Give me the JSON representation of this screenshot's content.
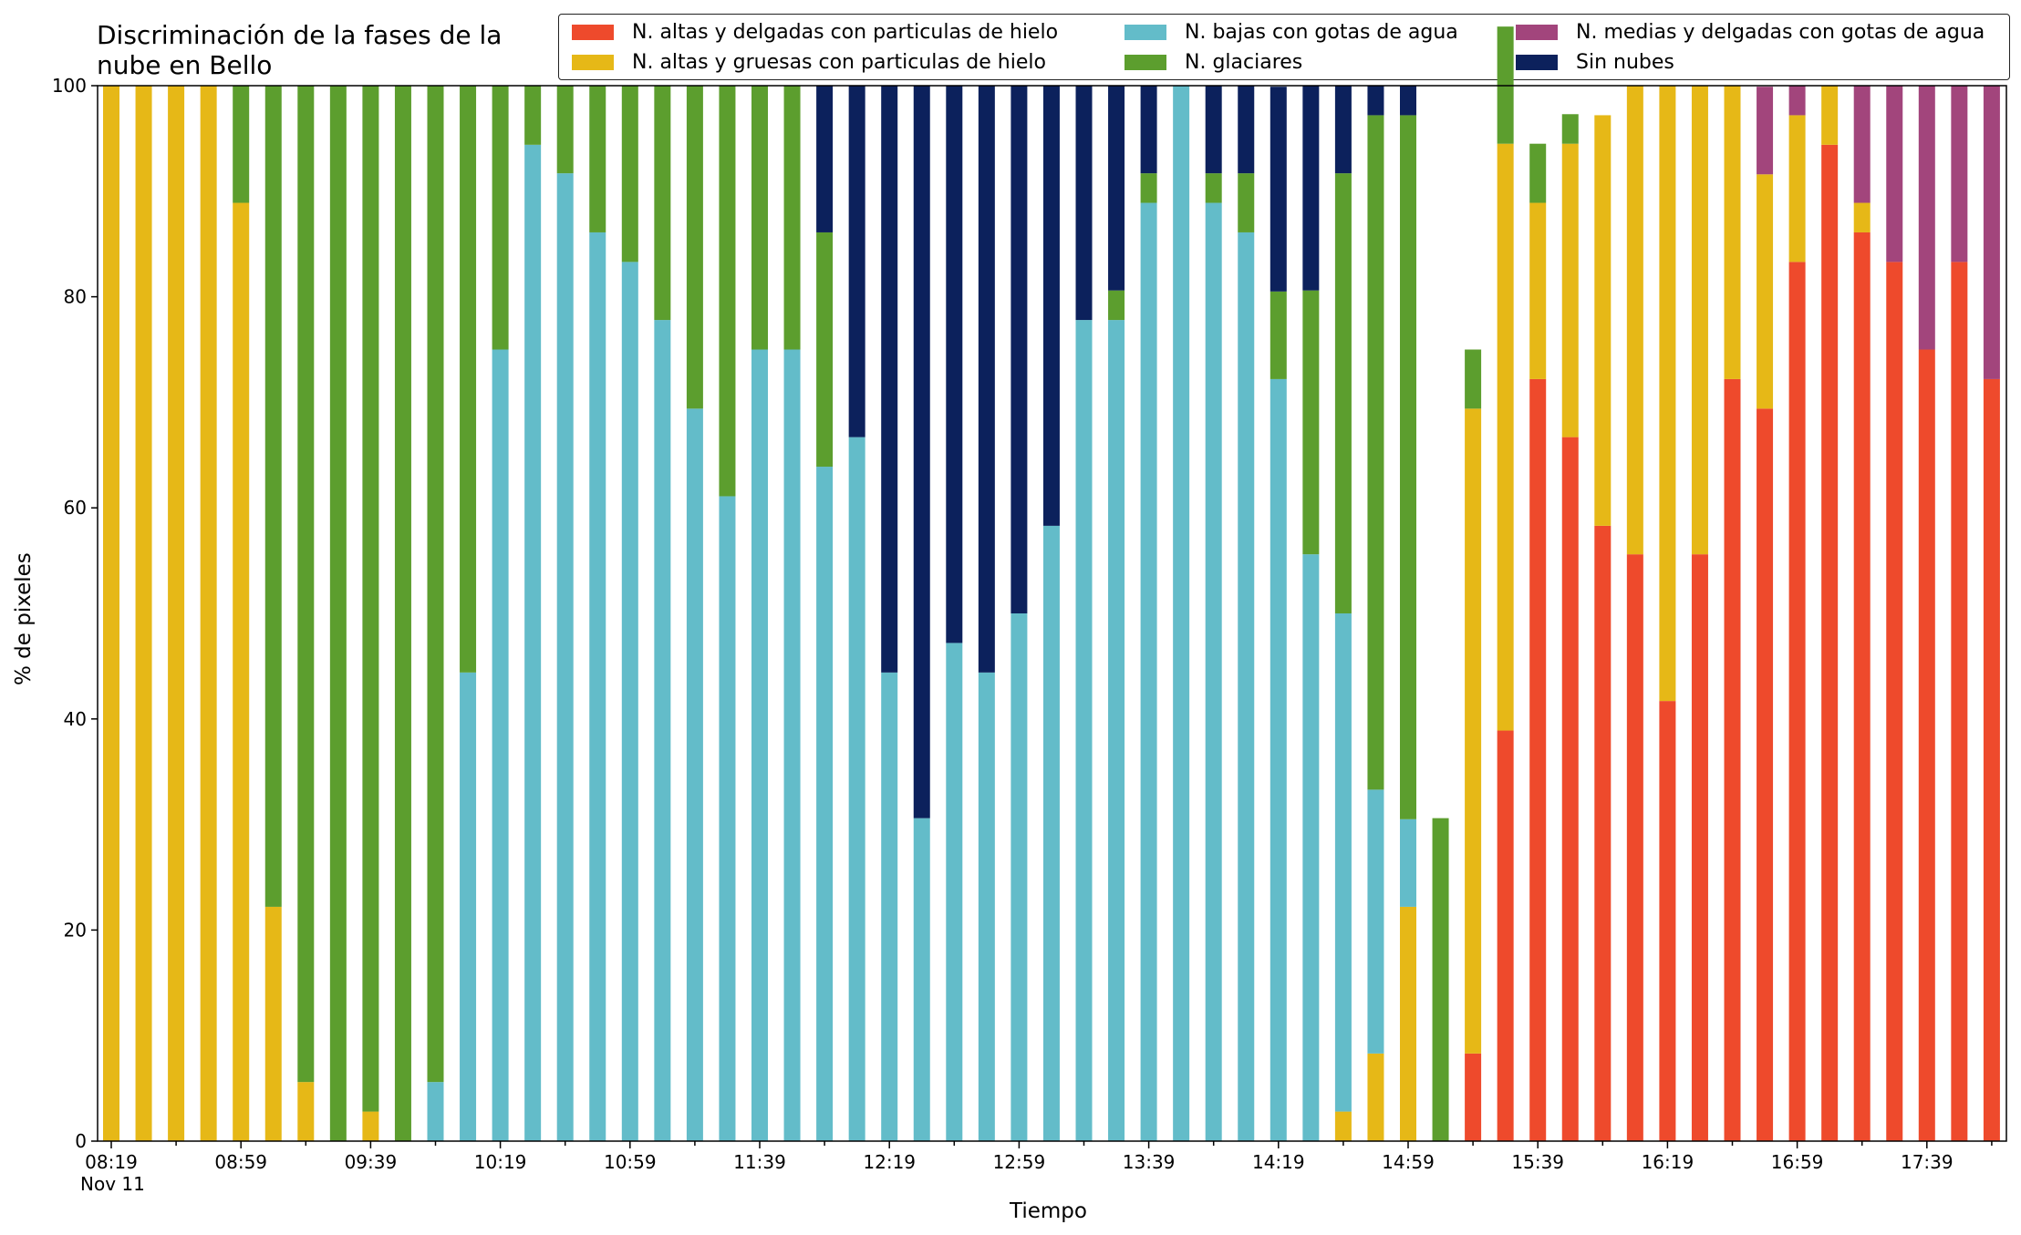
{
  "chart_data": {
    "type": "bar",
    "stacked": true,
    "title": "Discriminación de la fases de la\nnube en Bello",
    "xlabel": "Tiempo",
    "ylabel": "% de pixeles",
    "ylim": [
      0,
      100
    ],
    "yticks": [
      0,
      20,
      40,
      60,
      80,
      100
    ],
    "grid": false,
    "legend_position": "top-right",
    "start_time": "08:19",
    "interval_minutes": 10,
    "xtick_labels": [
      "08:19\nNov 11",
      "08:59",
      "09:39",
      "10:19",
      "10:59",
      "11:39",
      "12:19",
      "12:59",
      "13:39",
      "14:19",
      "14:59",
      "15:39",
      "16:19",
      "16:59",
      "17:39"
    ],
    "series": [
      {
        "name": "N. altas y delgadas con particulas de hielo",
        "color": "#ee4a2c",
        "values": [
          0,
          0,
          0,
          0,
          0,
          0,
          0,
          0,
          0,
          0,
          0,
          0,
          0,
          0,
          0,
          0,
          0,
          0,
          0,
          0,
          0,
          0,
          0,
          0,
          0,
          0,
          0,
          0,
          0,
          0,
          0,
          0,
          0,
          0,
          0,
          0,
          0,
          0,
          0,
          0,
          0,
          0,
          8.3,
          38.9,
          72.2,
          66.7,
          58.3,
          55.6,
          41.7,
          55.6,
          72.2,
          69.4,
          83.3,
          94.4,
          86.1,
          83.3,
          75,
          83.3,
          72.2
        ]
      },
      {
        "name": "N. altas y gruesas con particulas de hielo",
        "color": "#e6b817",
        "values": [
          100,
          100,
          100,
          100,
          88.9,
          22.2,
          5.6,
          0,
          2.8,
          0,
          0,
          0,
          0,
          0,
          0,
          0,
          0,
          0,
          0,
          0,
          0,
          0,
          0,
          0,
          0,
          0,
          0,
          0,
          0,
          0,
          0,
          0,
          0,
          0,
          0,
          0,
          0,
          0,
          2.8,
          8.3,
          22.2,
          0,
          61.1,
          55.6,
          16.7,
          27.8,
          38.9,
          44.4,
          58.3,
          44.4,
          27.8,
          22.2,
          13.9,
          5.6,
          2.8,
          0,
          0,
          0,
          0
        ]
      },
      {
        "name": "N. bajas con gotas de agua",
        "color": "#63bcc9",
        "values": [
          0,
          0,
          0,
          0,
          0,
          0,
          0,
          0,
          0,
          0,
          5.6,
          44.4,
          75,
          94.4,
          91.7,
          86.1,
          83.3,
          77.8,
          69.4,
          61.1,
          75,
          75,
          63.9,
          66.7,
          44.4,
          30.6,
          47.2,
          44.4,
          50,
          58.3,
          77.8,
          77.8,
          88.9,
          100,
          88.9,
          86.1,
          72.2,
          55.6,
          47.2,
          25,
          8.3,
          0,
          0,
          0,
          0,
          0,
          0,
          0,
          0,
          0,
          0,
          0,
          0,
          0,
          0,
          0,
          0,
          0,
          0
        ]
      },
      {
        "name": "N. glaciares",
        "color": "#5c9e2e",
        "values": [
          0,
          0,
          0,
          0,
          11.1,
          77.8,
          94.4,
          100,
          97.2,
          100,
          94.4,
          55.6,
          25,
          5.6,
          8.3,
          13.9,
          16.7,
          22.2,
          30.6,
          38.9,
          25,
          25,
          22.2,
          0,
          0,
          0,
          0,
          0,
          0,
          0,
          0,
          2.8,
          2.8,
          0,
          2.8,
          5.6,
          8.3,
          25,
          41.7,
          63.9,
          66.7,
          30.6,
          5.6,
          11.1,
          5.6,
          2.8,
          0,
          0,
          0,
          0,
          0,
          0,
          0,
          0,
          0,
          0,
          0,
          0,
          0
        ]
      },
      {
        "name": "N. medias y delgadas con gotas de agua",
        "color": "#a2457c",
        "values": [
          0,
          0,
          0,
          0,
          0,
          0,
          0,
          0,
          0,
          0,
          0,
          0,
          0,
          0,
          0,
          0,
          0,
          0,
          0,
          0,
          0,
          0,
          0,
          0,
          0,
          0,
          0,
          0,
          0,
          0,
          0,
          0,
          0,
          0,
          0,
          0,
          0,
          0,
          0,
          0,
          0,
          0,
          0,
          0,
          0,
          0,
          0,
          0,
          0,
          0,
          0,
          8.3,
          2.8,
          0,
          11.1,
          16.7,
          25,
          16.7,
          27.8
        ]
      },
      {
        "name": "Sin nubes",
        "color": "#0c215c",
        "values": [
          0,
          0,
          0,
          0,
          0,
          0,
          0,
          0,
          0,
          0,
          0,
          0,
          0,
          0,
          0,
          0,
          0,
          0,
          0,
          0,
          0,
          0,
          13.9,
          33.3,
          55.6,
          69.4,
          52.8,
          55.6,
          50,
          41.7,
          22.2,
          19.4,
          8.3,
          0,
          8.3,
          8.3,
          19.4,
          19.4,
          8.3,
          2.8,
          2.8,
          0,
          0,
          0,
          0,
          0,
          0,
          0,
          0,
          0,
          0,
          0,
          0,
          0,
          0,
          0,
          0,
          0,
          0
        ]
      }
    ]
  }
}
